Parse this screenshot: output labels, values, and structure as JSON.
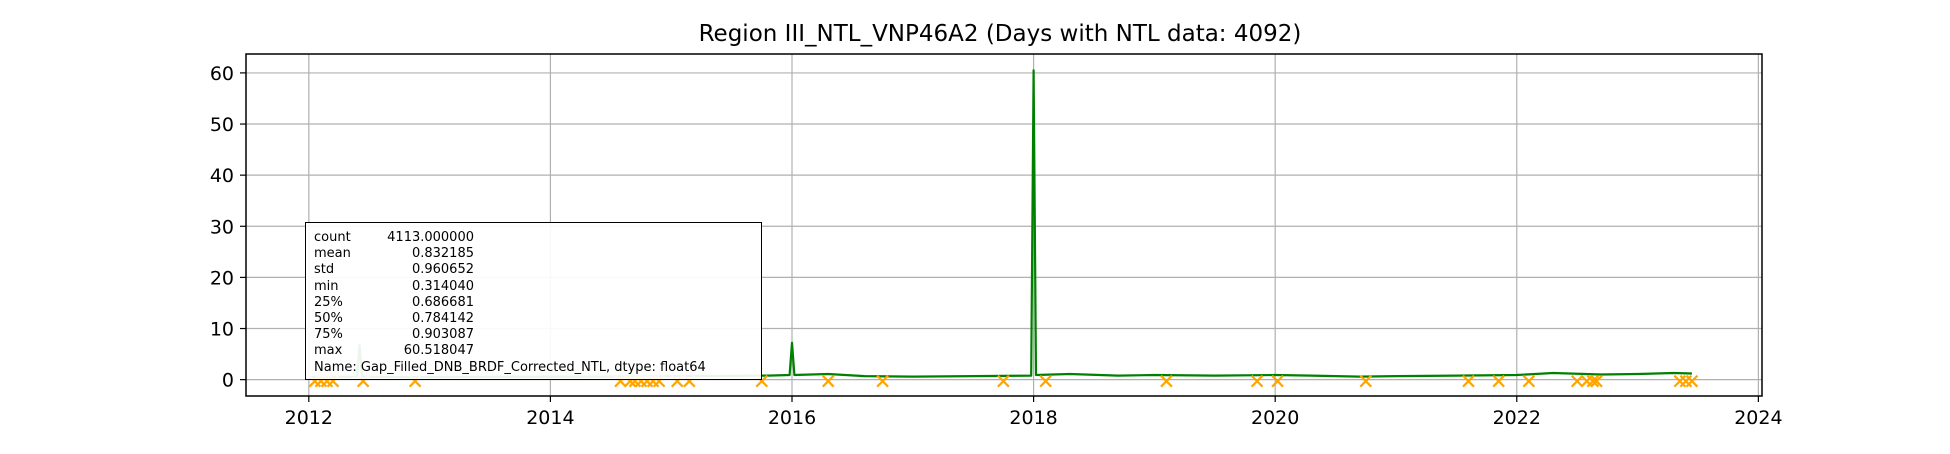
{
  "chart_data": {
    "type": "line",
    "title": "Region III_NTL_VNP46A2 (Days with NTL data: 4092)",
    "xlabel": "",
    "ylabel": "",
    "x_tick_labels": [
      "2012",
      "2014",
      "2016",
      "2018",
      "2020",
      "2022",
      "2024"
    ],
    "x_tick_years": [
      2012,
      2014,
      2016,
      2018,
      2020,
      2022,
      2024
    ],
    "y_ticks": [
      0,
      10,
      20,
      30,
      40,
      50,
      60
    ],
    "xlim": [
      2011.48,
      2024.03
    ],
    "ylim": [
      -3.2,
      63.7
    ],
    "grid": true,
    "series": [
      {
        "kind": "line",
        "color": "#008000",
        "points": [
          [
            2012.0,
            0.5
          ],
          [
            2012.4,
            0.6
          ],
          [
            2012.42,
            6.8
          ],
          [
            2012.44,
            0.6
          ],
          [
            2012.8,
            0.5
          ],
          [
            2013.5,
            0.55
          ],
          [
            2014.5,
            0.6
          ],
          [
            2015.2,
            0.7
          ],
          [
            2015.8,
            0.8
          ],
          [
            2015.98,
            0.9
          ],
          [
            2016.0,
            7.2
          ],
          [
            2016.02,
            0.9
          ],
          [
            2016.3,
            1.1
          ],
          [
            2016.6,
            0.7
          ],
          [
            2017.0,
            0.6
          ],
          [
            2017.5,
            0.7
          ],
          [
            2017.98,
            0.8
          ],
          [
            2018.0,
            60.5
          ],
          [
            2018.02,
            0.9
          ],
          [
            2018.3,
            1.1
          ],
          [
            2018.7,
            0.8
          ],
          [
            2019.0,
            0.9
          ],
          [
            2019.5,
            0.8
          ],
          [
            2020.0,
            0.9
          ],
          [
            2020.3,
            0.8
          ],
          [
            2020.7,
            0.6
          ],
          [
            2021.0,
            0.7
          ],
          [
            2021.5,
            0.8
          ],
          [
            2022.0,
            0.9
          ],
          [
            2022.3,
            1.3
          ],
          [
            2022.7,
            1.0
          ],
          [
            2023.0,
            1.1
          ],
          [
            2023.3,
            1.3
          ],
          [
            2023.45,
            1.2
          ]
        ]
      },
      {
        "kind": "scatter",
        "marker": "x",
        "color": "#FFA500",
        "points": [
          [
            2012.05,
            -0.3
          ],
          [
            2012.1,
            -0.3
          ],
          [
            2012.15,
            -0.3
          ],
          [
            2012.2,
            -0.3
          ],
          [
            2012.45,
            -0.3
          ],
          [
            2012.88,
            -0.3
          ],
          [
            2014.58,
            -0.3
          ],
          [
            2014.66,
            -0.3
          ],
          [
            2014.7,
            -0.3
          ],
          [
            2014.75,
            -0.3
          ],
          [
            2014.8,
            -0.3
          ],
          [
            2014.85,
            -0.3
          ],
          [
            2014.9,
            -0.3
          ],
          [
            2015.05,
            -0.3
          ],
          [
            2015.15,
            -0.3
          ],
          [
            2015.75,
            -0.3
          ],
          [
            2016.3,
            -0.3
          ],
          [
            2016.75,
            -0.3
          ],
          [
            2017.75,
            -0.3
          ],
          [
            2018.1,
            -0.3
          ],
          [
            2019.1,
            -0.3
          ],
          [
            2019.85,
            -0.3
          ],
          [
            2020.02,
            -0.3
          ],
          [
            2020.75,
            -0.3
          ],
          [
            2021.6,
            -0.3
          ],
          [
            2021.85,
            -0.3
          ],
          [
            2022.1,
            -0.3
          ],
          [
            2022.5,
            -0.3
          ],
          [
            2022.58,
            -0.3
          ],
          [
            2022.63,
            -0.3
          ],
          [
            2022.66,
            -0.3
          ],
          [
            2023.35,
            -0.3
          ],
          [
            2023.4,
            -0.3
          ],
          [
            2023.45,
            -0.3
          ]
        ]
      }
    ],
    "stats_box": {
      "rows": [
        {
          "key": "count",
          "value": "4113.000000"
        },
        {
          "key": "mean",
          "value": "0.832185"
        },
        {
          "key": "std",
          "value": "0.960652"
        },
        {
          "key": "min",
          "value": "0.314040"
        },
        {
          "key": "25%",
          "value": "0.686681"
        },
        {
          "key": "50%",
          "value": "0.784142"
        },
        {
          "key": "75%",
          "value": "0.903087"
        },
        {
          "key": "max",
          "value": "60.518047"
        }
      ],
      "footer": "Name: Gap_Filled_DNB_BRDF_Corrected_NTL, dtype: float64"
    }
  }
}
